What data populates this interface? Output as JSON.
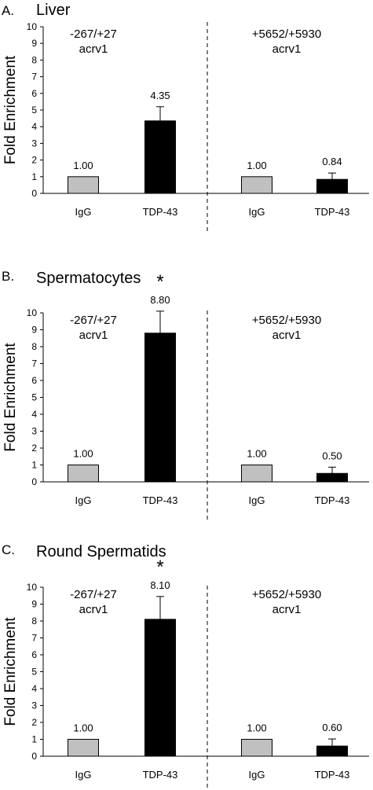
{
  "chart_data": [
    {
      "type": "bar",
      "panel_letter": "A.",
      "title": "Liver",
      "ylabel": "Fold Enrichment",
      "ylim": [
        0,
        10
      ],
      "yticks": [
        "0",
        "1",
        "2",
        "3",
        "4",
        "5",
        "6",
        "7",
        "8",
        "9",
        "10"
      ],
      "regions": [
        "-267/+27\nacrv1",
        "+5652/+5930\nacrv1"
      ],
      "categories": [
        "IgG",
        "TDP-43",
        "IgG",
        "TDP-43"
      ],
      "values": [
        1.0,
        4.35,
        1.0,
        0.84
      ],
      "errors": [
        0,
        0.85,
        0,
        0.38
      ],
      "value_labels": [
        "1.00",
        "4.35",
        "1.00",
        "0.84"
      ],
      "bar_colors": [
        "#c0c0c0",
        "#000000",
        "#c0c0c0",
        "#000000"
      ],
      "significance": ""
    },
    {
      "type": "bar",
      "panel_letter": "B.",
      "title": "Spermatocytes",
      "ylabel": "Fold Enrichment",
      "ylim": [
        0,
        10
      ],
      "yticks": [
        "0",
        "1",
        "2",
        "3",
        "4",
        "5",
        "6",
        "7",
        "8",
        "9",
        "10"
      ],
      "regions": [
        "-267/+27\nacrv1",
        "+5652/+5930\nacrv1"
      ],
      "categories": [
        "IgG",
        "TDP-43",
        "IgG",
        "TDP-43"
      ],
      "values": [
        1.0,
        8.8,
        1.0,
        0.5
      ],
      "errors": [
        0,
        1.3,
        0,
        0.37
      ],
      "value_labels": [
        "1.00",
        "8.80",
        "1.00",
        "0.50"
      ],
      "bar_colors": [
        "#c0c0c0",
        "#000000",
        "#c0c0c0",
        "#000000"
      ],
      "significance": "*"
    },
    {
      "type": "bar",
      "panel_letter": "C.",
      "title": "Round Spermatids",
      "ylabel": "Fold Enrichment",
      "ylim": [
        0,
        10
      ],
      "yticks": [
        "0",
        "1",
        "2",
        "3",
        "4",
        "5",
        "6",
        "7",
        "8",
        "9",
        "10"
      ],
      "regions": [
        "-267/+27\nacrv1",
        "+5652/+5930\nacrv1"
      ],
      "categories": [
        "IgG",
        "TDP-43",
        "IgG",
        "TDP-43"
      ],
      "values": [
        1.0,
        8.1,
        1.0,
        0.6
      ],
      "errors": [
        0,
        1.35,
        0,
        0.42
      ],
      "value_labels": [
        "1.00",
        "8.10",
        "1.00",
        "0.60"
      ],
      "bar_colors": [
        "#c0c0c0",
        "#000000",
        "#c0c0c0",
        "#000000"
      ],
      "significance": "*"
    }
  ]
}
